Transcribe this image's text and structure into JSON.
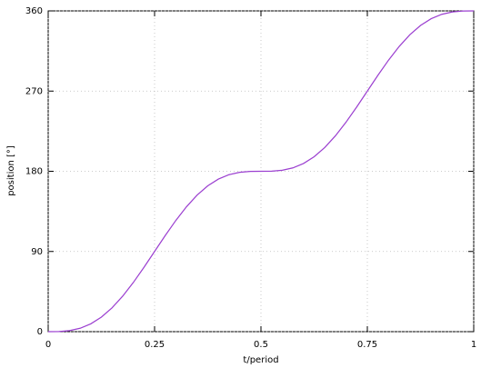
{
  "chart_data": {
    "type": "line",
    "x_label": "t/period",
    "y_label": "position [°]",
    "x": [
      0,
      0.025,
      0.05,
      0.075,
      0.1,
      0.125,
      0.15,
      0.175,
      0.2,
      0.225,
      0.25,
      0.275,
      0.3,
      0.325,
      0.35,
      0.375,
      0.4,
      0.425,
      0.45,
      0.475,
      0.5,
      0.525,
      0.55,
      0.575,
      0.6,
      0.625,
      0.65,
      0.675,
      0.7,
      0.725,
      0.75,
      0.775,
      0.8,
      0.825,
      0.85,
      0.875,
      0.9,
      0.925,
      0.95,
      0.975,
      1
    ],
    "values": [
      0,
      0.15,
      1.16,
      3.82,
      8.75,
      16.35,
      26.75,
      39.82,
      55.16,
      72.15,
      90,
      107.85,
      124.84,
      140.18,
      153.25,
      163.65,
      171.25,
      176.18,
      178.84,
      179.85,
      180,
      180.15,
      181.16,
      183.82,
      188.75,
      196.35,
      206.75,
      219.82,
      235.16,
      252.15,
      270,
      287.85,
      304.84,
      320.18,
      333.25,
      343.65,
      351.25,
      356.18,
      358.84,
      359.85,
      360
    ],
    "color": "#9b3fd0",
    "xlim": [
      0,
      1
    ],
    "xticks": [
      0,
      0.25,
      0.5,
      0.75,
      1
    ],
    "ylim": [
      0,
      360
    ],
    "yticks": [
      0,
      90,
      180,
      270,
      360
    ],
    "grid": true
  }
}
